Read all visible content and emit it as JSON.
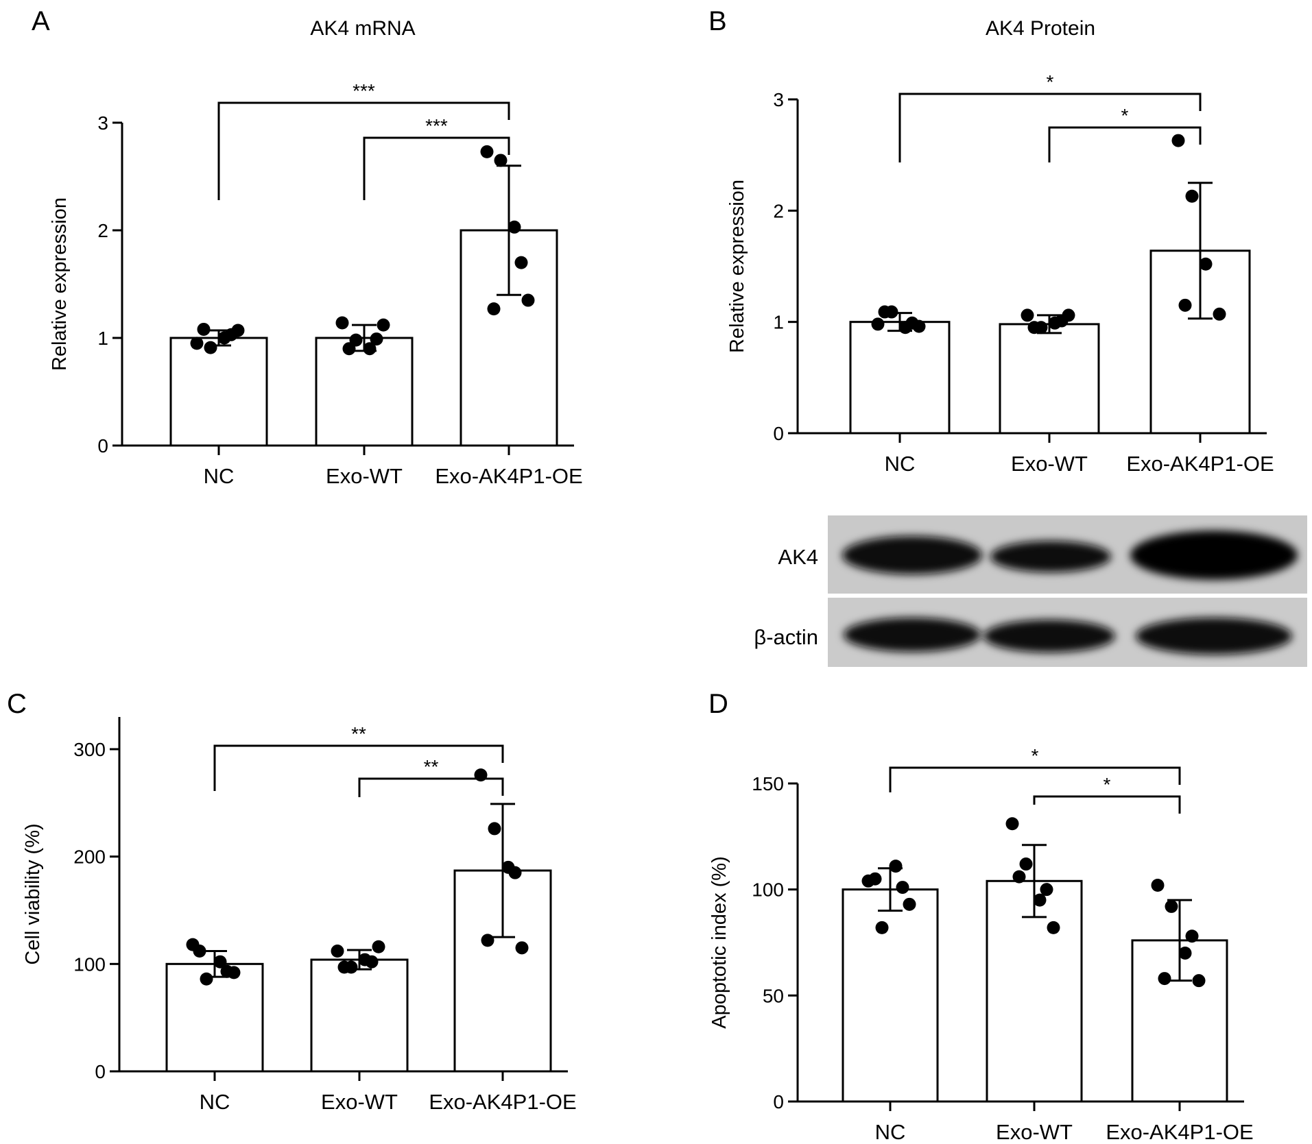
{
  "chart_data": [
    {
      "panel": "A",
      "type": "bar",
      "title": "AK4 mRNA",
      "xlabel": "",
      "ylabel": "Relative expression",
      "categories": [
        "NC",
        "Exo-WT",
        "Exo-AK4P1-OE"
      ],
      "ylim": [
        0,
        3
      ],
      "yticks": [
        0,
        1,
        2,
        3
      ],
      "values": [
        1.0,
        1.0,
        2.0
      ],
      "sd": [
        0.07,
        0.12,
        0.6
      ],
      "points": [
        [
          0.95,
          0.91,
          1.0,
          1.07,
          1.08,
          1.03
        ],
        [
          1.14,
          0.98,
          0.9,
          1.12,
          0.9,
          0.99
        ],
        [
          2.73,
          2.65,
          2.03,
          1.35,
          1.27,
          1.7
        ]
      ],
      "comparisons": [
        {
          "from": "NC",
          "to": "Exo-AK4P1-OE",
          "label": "***"
        },
        {
          "from": "Exo-WT",
          "to": "Exo-AK4P1-OE",
          "label": "***"
        }
      ]
    },
    {
      "panel": "B",
      "type": "bar",
      "title": "AK4 Protein",
      "xlabel": "",
      "ylabel": "Relative expression",
      "categories": [
        "NC",
        "Exo-WT",
        "Exo-AK4P1-OE"
      ],
      "ylim": [
        0,
        3
      ],
      "yticks": [
        0,
        1,
        2,
        3
      ],
      "values": [
        1.0,
        0.98,
        1.64
      ],
      "sd": [
        0.08,
        0.08,
        0.61
      ],
      "points": [
        [
          0.98,
          1.09,
          0.95,
          0.96,
          1.09,
          0.99
        ],
        [
          1.06,
          0.95,
          0.99,
          1.06,
          0.95,
          1.01
        ],
        [
          2.63,
          2.13,
          1.52,
          1.07,
          1.15
        ]
      ],
      "comparisons": [
        {
          "from": "NC",
          "to": "Exo-AK4P1-OE",
          "label": "*"
        },
        {
          "from": "Exo-WT",
          "to": "Exo-AK4P1-OE",
          "label": "*"
        }
      ]
    },
    {
      "panel": "C",
      "type": "bar",
      "title": "",
      "xlabel": "",
      "ylabel": "Cell viability (%)",
      "categories": [
        "NC",
        "Exo-WT",
        "Exo-AK4P1-OE"
      ],
      "ylim": [
        0,
        330
      ],
      "yticks": [
        0,
        100,
        200,
        300
      ],
      "values": [
        100,
        104,
        187
      ],
      "sd": [
        12,
        9,
        62
      ],
      "points": [
        [
          118,
          86,
          102,
          92,
          112,
          93
        ],
        [
          112,
          97,
          104,
          116,
          97,
          102
        ],
        [
          276,
          226,
          190,
          115,
          122,
          185
        ]
      ],
      "comparisons": [
        {
          "from": "NC",
          "to": "Exo-AK4P1-OE",
          "label": "**"
        },
        {
          "from": "Exo-WT",
          "to": "Exo-AK4P1-OE",
          "label": "**"
        }
      ]
    },
    {
      "panel": "D",
      "type": "bar",
      "title": "",
      "xlabel": "",
      "ylabel": "Apoptotic index (%)",
      "categories": [
        "NC",
        "Exo-WT",
        "Exo-AK4P1-OE"
      ],
      "ylim": [
        0,
        150
      ],
      "yticks": [
        0,
        50,
        100,
        150
      ],
      "values": [
        100,
        104,
        76
      ],
      "sd": [
        10,
        17,
        19
      ],
      "points": [
        [
          104,
          82,
          111,
          93,
          105,
          101
        ],
        [
          131,
          112,
          95,
          82,
          106,
          100
        ],
        [
          102,
          92,
          70,
          57,
          58,
          78
        ]
      ],
      "comparisons": [
        {
          "from": "NC",
          "to": "Exo-AK4P1-OE",
          "label": "*"
        },
        {
          "from": "Exo-WT",
          "to": "Exo-AK4P1-OE",
          "label": "*"
        }
      ]
    }
  ],
  "blot": {
    "rows": [
      "AK4",
      "β-actin"
    ],
    "lanes": [
      "NC",
      "Exo-WT",
      "Exo-AK4P1-OE"
    ]
  }
}
